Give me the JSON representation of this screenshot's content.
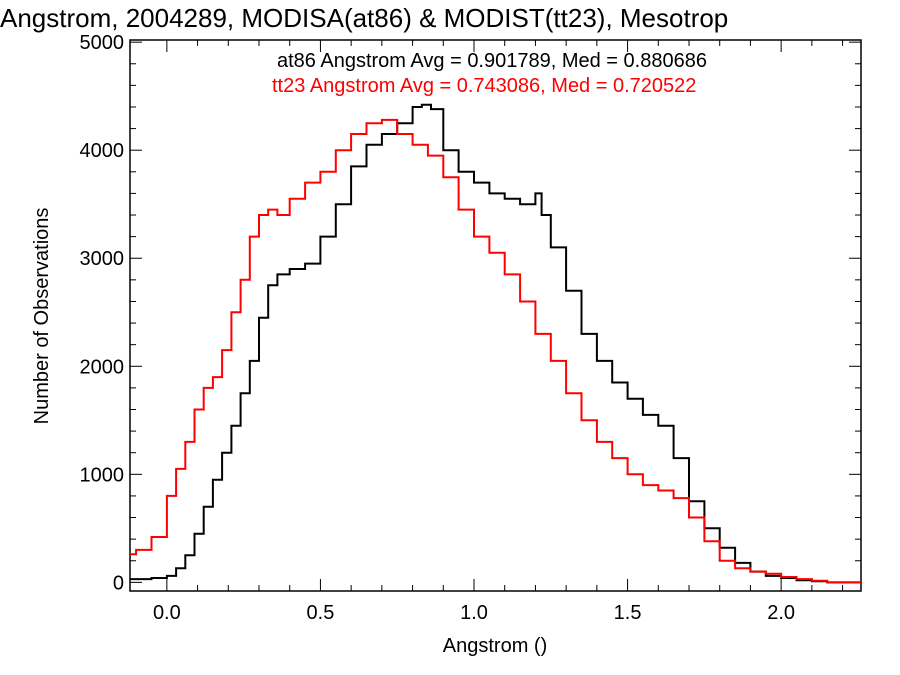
{
  "chart_data": {
    "type": "line",
    "title": "Angstrom, 2004289, MODISA(at86) & MODIST(tt23), Mesotrop",
    "xlabel": "Angstrom ()",
    "ylabel": "Number of Observations",
    "xlim": [
      -0.12,
      2.26
    ],
    "ylim": [
      -80,
      5020
    ],
    "xticks": [
      0.0,
      0.5,
      1.0,
      1.5,
      2.0
    ],
    "xtick_labels": [
      "0.0",
      "0.5",
      "1.0",
      "1.5",
      "2.0"
    ],
    "yticks": [
      0,
      1000,
      2000,
      3000,
      4000,
      5000
    ],
    "ytick_labels": [
      "0",
      "1000",
      "2000",
      "3000",
      "4000",
      "5000"
    ],
    "annotations": [
      {
        "text": "at86 Angstrom Avg = 0.901789, Med = 0.880686",
        "color": "#000000"
      },
      {
        "text": "tt23 Angstrom Avg = 0.743086, Med = 0.720522",
        "color": "#ff0000"
      }
    ],
    "series": [
      {
        "color": "#000000",
        "x": [
          -0.12,
          -0.05,
          0.0,
          0.03,
          0.06,
          0.09,
          0.12,
          0.15,
          0.18,
          0.21,
          0.24,
          0.27,
          0.3,
          0.33,
          0.36,
          0.4,
          0.45,
          0.5,
          0.55,
          0.6,
          0.65,
          0.7,
          0.75,
          0.8,
          0.83,
          0.86,
          0.9,
          0.95,
          1.0,
          1.05,
          1.1,
          1.15,
          1.2,
          1.22,
          1.25,
          1.3,
          1.35,
          1.4,
          1.45,
          1.5,
          1.55,
          1.6,
          1.65,
          1.7,
          1.75,
          1.8,
          1.85,
          1.9,
          1.95,
          2.0,
          2.05,
          2.1,
          2.15,
          2.2,
          2.26
        ],
        "y": [
          30,
          40,
          60,
          130,
          250,
          450,
          700,
          950,
          1200,
          1450,
          1750,
          2050,
          2450,
          2750,
          2850,
          2900,
          2950,
          3200,
          3500,
          3850,
          4050,
          4150,
          4250,
          4400,
          4420,
          4380,
          4000,
          3800,
          3700,
          3600,
          3550,
          3500,
          3600,
          3400,
          3100,
          2700,
          2300,
          2050,
          1850,
          1700,
          1550,
          1450,
          1150,
          750,
          500,
          320,
          180,
          100,
          60,
          40,
          20,
          10,
          0,
          0,
          0
        ]
      },
      {
        "color": "#ff0000",
        "x": [
          -0.12,
          -0.1,
          -0.05,
          0.0,
          0.03,
          0.06,
          0.09,
          0.12,
          0.15,
          0.18,
          0.21,
          0.24,
          0.27,
          0.3,
          0.33,
          0.36,
          0.4,
          0.45,
          0.5,
          0.55,
          0.6,
          0.65,
          0.7,
          0.75,
          0.8,
          0.85,
          0.9,
          0.95,
          1.0,
          1.05,
          1.1,
          1.15,
          1.2,
          1.25,
          1.3,
          1.35,
          1.4,
          1.45,
          1.5,
          1.55,
          1.6,
          1.65,
          1.7,
          1.75,
          1.8,
          1.85,
          1.9,
          1.95,
          2.0,
          2.05,
          2.1,
          2.15,
          2.26
        ],
        "y": [
          260,
          300,
          420,
          800,
          1050,
          1300,
          1600,
          1800,
          1900,
          2150,
          2500,
          2800,
          3200,
          3400,
          3450,
          3400,
          3550,
          3700,
          3800,
          4000,
          4150,
          4250,
          4280,
          4150,
          4050,
          3950,
          3750,
          3450,
          3200,
          3050,
          2850,
          2600,
          2300,
          2050,
          1750,
          1500,
          1300,
          1150,
          1000,
          900,
          850,
          780,
          600,
          380,
          200,
          130,
          100,
          80,
          50,
          30,
          15,
          0,
          0
        ]
      }
    ]
  }
}
